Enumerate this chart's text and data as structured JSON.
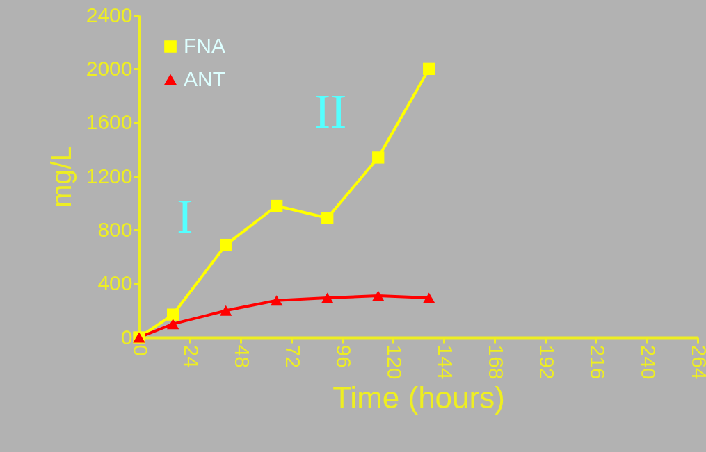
{
  "chart_data": {
    "type": "line",
    "xlabel": "Time (hours)",
    "ylabel": "mg/L",
    "xlim": [
      0,
      264
    ],
    "xticks": [
      0,
      24,
      48,
      72,
      96,
      120,
      144,
      168,
      192,
      216,
      240,
      264
    ],
    "ylim": [
      0,
      2400
    ],
    "yticks": [
      0,
      400,
      800,
      1200,
      1600,
      2000,
      2400
    ],
    "grid": false,
    "legend": "top left",
    "series": [
      {
        "name": "FNA",
        "color": "#ffff00",
        "marker": "square",
        "x": [
          0,
          16,
          41,
          65,
          89,
          113,
          137
        ],
        "values": [
          0,
          170,
          690,
          980,
          890,
          1340,
          2000
        ]
      },
      {
        "name": "ANT",
        "color": "#ff0000",
        "marker": "triangle",
        "x": [
          0,
          16,
          41,
          65,
          89,
          113,
          137
        ],
        "values": [
          0,
          100,
          200,
          275,
          295,
          310,
          295
        ]
      }
    ],
    "annotations": [
      "I",
      "II"
    ]
  }
}
